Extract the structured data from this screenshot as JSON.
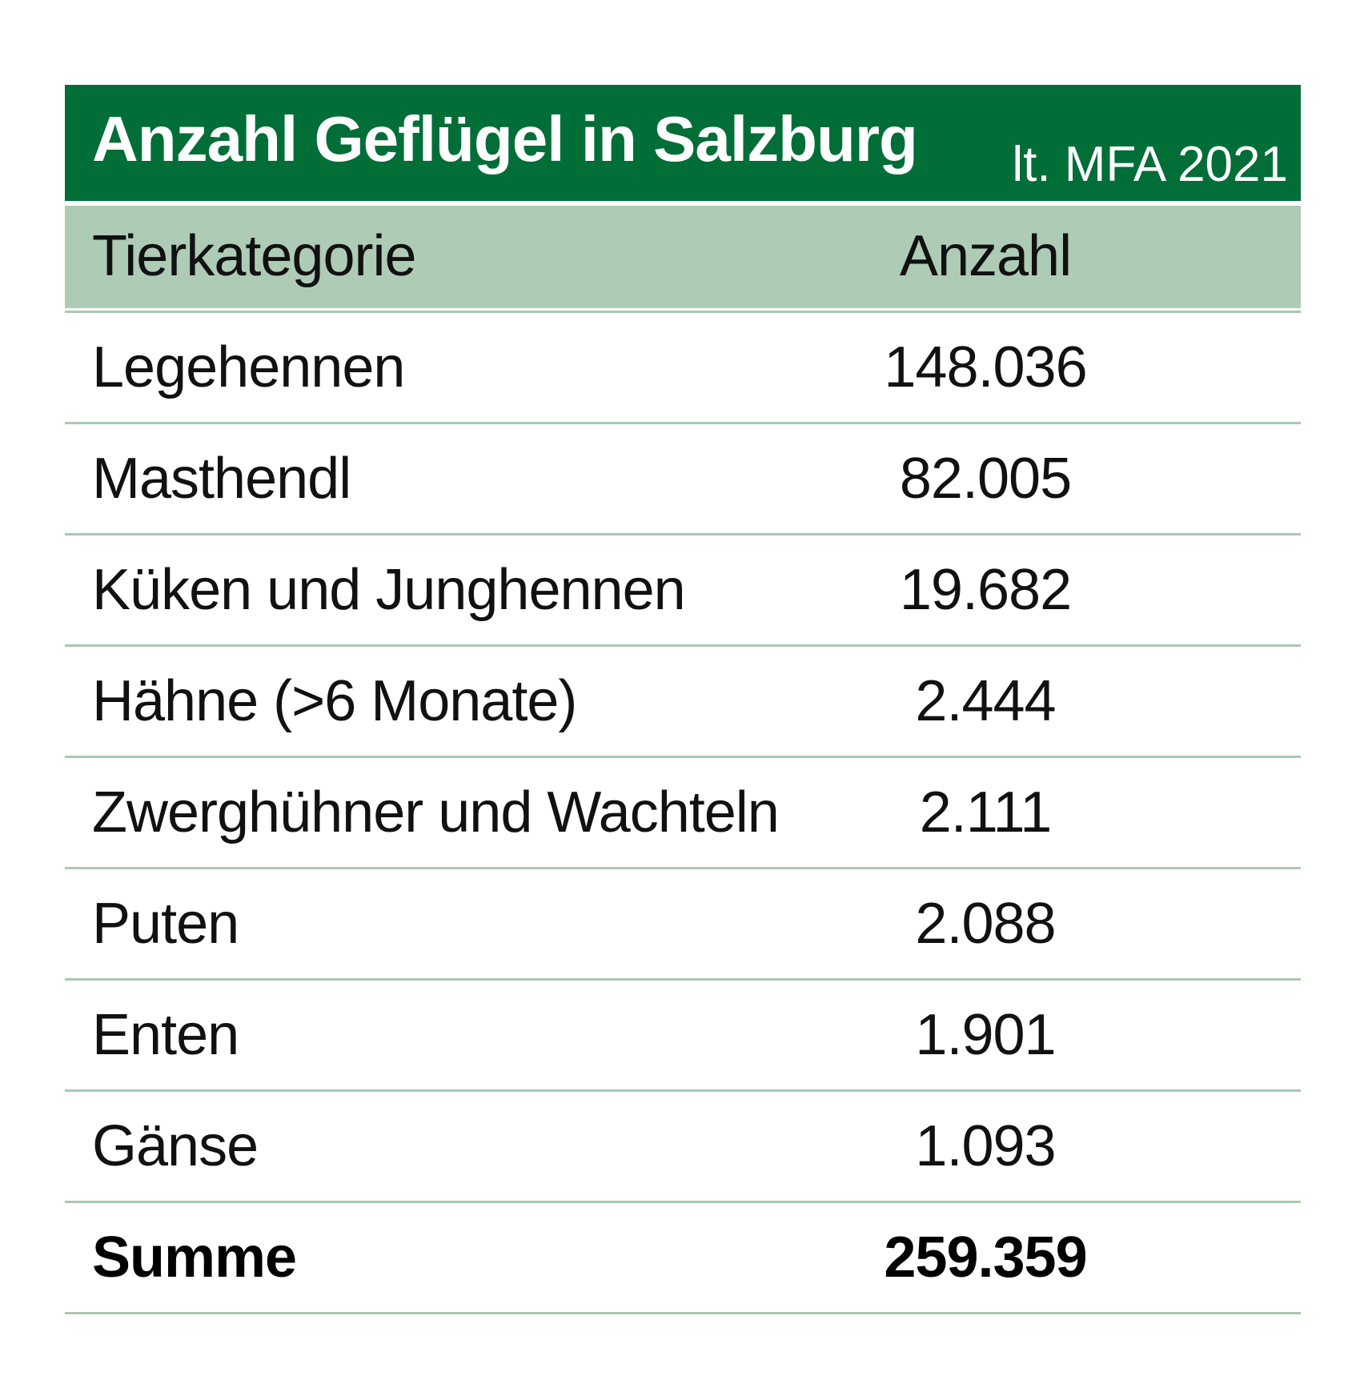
{
  "title": "Anzahl Geflügel in Salzburg",
  "subtitle": "lt. MFA 2021",
  "colors": {
    "title_bar": "#016e38",
    "header_bg": "#aecbb6",
    "row_divider": "#a9c8b1"
  },
  "chart_data": {
    "type": "table",
    "title": "Anzahl Geflügel in Salzburg",
    "subtitle": "lt. MFA 2021",
    "columns": [
      "Tierkategorie",
      "Anzahl"
    ],
    "rows": [
      {
        "label": "Legehennen",
        "value": "148.036"
      },
      {
        "label": "Masthendl",
        "value": "82.005"
      },
      {
        "label": "Küken und Junghennen",
        "value": "19.682"
      },
      {
        "label": "Hähne (>6 Monate)",
        "value": "2.444"
      },
      {
        "label": "Zwerghühner und Wachteln",
        "value": "2.111"
      },
      {
        "label": "Puten",
        "value": "2.088"
      },
      {
        "label": "Enten",
        "value": "1.901"
      },
      {
        "label": "Gänse",
        "value": "1.093"
      }
    ],
    "total": {
      "label": "Summe",
      "value": "259.359"
    }
  }
}
